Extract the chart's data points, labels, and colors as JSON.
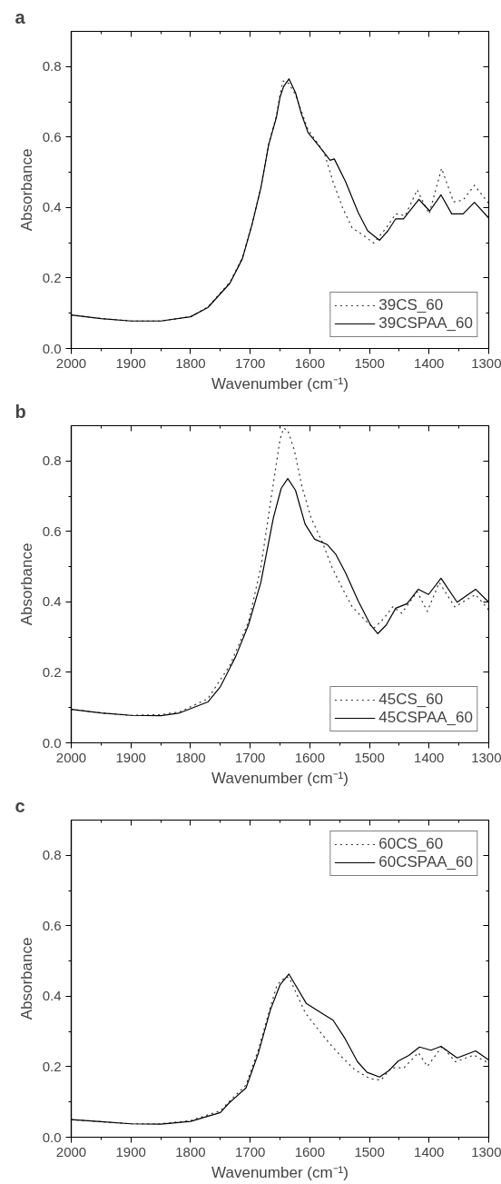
{
  "chart_data": [
    {
      "type": "line",
      "title": "a",
      "xlabel": "Wavenumber (cm⁻¹)",
      "ylabel": "Absorbance",
      "xlim": [
        2000,
        1300
      ],
      "ylim": [
        0,
        0.9
      ],
      "xticks": [
        2000,
        {
          "value": 1950,
          "label": null
        },
        1900,
        {
          "value": 1850,
          "label": null
        },
        1800,
        {
          "value": 1750,
          "label": null
        },
        1700,
        {
          "value": 1650,
          "label": null
        },
        1600,
        {
          "value": 1550,
          "label": null
        },
        1500,
        {
          "value": 1450,
          "label": null
        },
        1400,
        {
          "value": 1350,
          "label": null
        },
        1300
      ],
      "yticks": [
        {
          "value": 0,
          "label": "0.0"
        },
        {
          "value": 0.1,
          "label": null
        },
        0.2,
        {
          "value": 0.3,
          "label": null
        },
        0.4,
        {
          "value": 0.5,
          "label": null
        },
        0.6,
        {
          "value": 0.7,
          "label": null
        },
        0.8
      ],
      "legend": "bottom right",
      "series": [
        {
          "name": "39CS_60",
          "color": "#333333",
          "line_style": "dotted",
          "x": [
            2000,
            1950,
            1900,
            1850,
            1800,
            1771,
            1734,
            1713,
            1697,
            1682,
            1669,
            1656,
            1650,
            1645,
            1635,
            1624,
            1603,
            1576,
            1561,
            1545,
            1529,
            1509,
            1493,
            1472,
            1456,
            1440,
            1420,
            1400,
            1379,
            1359,
            1343,
            1324,
            1300
          ],
          "values": [
            0.095,
            0.085,
            0.078,
            0.078,
            0.09,
            0.118,
            0.188,
            0.258,
            0.352,
            0.458,
            0.58,
            0.66,
            0.72,
            0.759,
            0.752,
            0.72,
            0.621,
            0.556,
            0.473,
            0.399,
            0.342,
            0.32,
            0.299,
            0.342,
            0.382,
            0.377,
            0.45,
            0.382,
            0.511,
            0.416,
            0.421,
            0.463,
            0.412
          ]
        },
        {
          "name": "39CSPAA_60",
          "color": "#000000",
          "line_style": "solid",
          "x": [
            2000,
            1950,
            1900,
            1850,
            1800,
            1771,
            1734,
            1713,
            1697,
            1682,
            1669,
            1656,
            1650,
            1644,
            1635,
            1624,
            1614,
            1603,
            1582,
            1566,
            1559,
            1540,
            1519,
            1503,
            1483,
            1469,
            1456,
            1443,
            1417,
            1399,
            1380,
            1362,
            1343,
            1324,
            1300
          ],
          "values": [
            0.095,
            0.085,
            0.078,
            0.078,
            0.09,
            0.116,
            0.185,
            0.255,
            0.351,
            0.456,
            0.578,
            0.656,
            0.713,
            0.743,
            0.765,
            0.726,
            0.665,
            0.613,
            0.569,
            0.534,
            0.538,
            0.473,
            0.386,
            0.334,
            0.307,
            0.334,
            0.368,
            0.368,
            0.423,
            0.39,
            0.436,
            0.382,
            0.382,
            0.415,
            0.37
          ]
        }
      ]
    },
    {
      "type": "line",
      "title": "b",
      "xlabel": "Wavenumber (cm⁻¹)",
      "ylabel": "Absorbance",
      "xlim": [
        2000,
        1300
      ],
      "ylim": [
        0,
        0.9
      ],
      "xticks": [
        2000,
        {
          "value": 1950,
          "label": null
        },
        1900,
        {
          "value": 1850,
          "label": null
        },
        1800,
        {
          "value": 1750,
          "label": null
        },
        1700,
        {
          "value": 1650,
          "label": null
        },
        1600,
        {
          "value": 1550,
          "label": null
        },
        1500,
        {
          "value": 1450,
          "label": null
        },
        1400,
        {
          "value": 1350,
          "label": null
        },
        1300
      ],
      "yticks": [
        {
          "value": 0,
          "label": "0.0"
        },
        {
          "value": 0.1,
          "label": null
        },
        0.2,
        {
          "value": 0.3,
          "label": null
        },
        0.4,
        {
          "value": 0.5,
          "label": null
        },
        0.6,
        {
          "value": 0.7,
          "label": null
        },
        0.8
      ],
      "legend": "bottom right",
      "series": [
        {
          "name": "45CS_60",
          "color": "#333333",
          "line_style": "dotted",
          "x": [
            2000,
            1950,
            1900,
            1850,
            1818,
            1771,
            1734,
            1703,
            1682,
            1666,
            1650,
            1644,
            1637,
            1626,
            1613,
            1598,
            1579,
            1563,
            1548,
            1529,
            1509,
            1493,
            1477,
            1461,
            1446,
            1420,
            1403,
            1383,
            1357,
            1322,
            1300
          ],
          "values": [
            0.095,
            0.085,
            0.078,
            0.08,
            0.088,
            0.125,
            0.22,
            0.342,
            0.499,
            0.682,
            0.861,
            0.893,
            0.887,
            0.831,
            0.726,
            0.639,
            0.569,
            0.499,
            0.447,
            0.386,
            0.351,
            0.325,
            0.351,
            0.386,
            0.368,
            0.429,
            0.373,
            0.455,
            0.386,
            0.421,
            0.377
          ]
        },
        {
          "name": "45CSPAA_60",
          "color": "#000000",
          "line_style": "solid",
          "x": [
            2000,
            1950,
            1900,
            1850,
            1818,
            1771,
            1750,
            1724,
            1703,
            1682,
            1661,
            1648,
            1637,
            1624,
            1608,
            1592,
            1571,
            1556,
            1540,
            1519,
            1498,
            1486,
            1472,
            1456,
            1437,
            1418,
            1401,
            1380,
            1353,
            1322,
            1300
          ],
          "values": [
            0.095,
            0.085,
            0.078,
            0.077,
            0.085,
            0.116,
            0.159,
            0.246,
            0.334,
            0.456,
            0.639,
            0.722,
            0.75,
            0.717,
            0.621,
            0.578,
            0.563,
            0.534,
            0.482,
            0.403,
            0.334,
            0.31,
            0.334,
            0.382,
            0.395,
            0.436,
            0.421,
            0.467,
            0.399,
            0.436,
            0.399
          ]
        }
      ]
    },
    {
      "type": "line",
      "title": "c",
      "xlabel": "Wavenumber (cm⁻¹)",
      "ylabel": "Absorbance",
      "xlim": [
        2000,
        1300
      ],
      "ylim": [
        0,
        0.9
      ],
      "xticks": [
        2000,
        {
          "value": 1950,
          "label": null
        },
        1900,
        {
          "value": 1850,
          "label": null
        },
        1800,
        {
          "value": 1750,
          "label": null
        },
        1700,
        {
          "value": 1650,
          "label": null
        },
        1600,
        {
          "value": 1550,
          "label": null
        },
        1500,
        {
          "value": 1450,
          "label": null
        },
        1400,
        {
          "value": 1350,
          "label": null
        },
        1300
      ],
      "yticks": [
        {
          "value": 0,
          "label": "0.0"
        },
        {
          "value": 0.1,
          "label": null
        },
        0.2,
        {
          "value": 0.3,
          "label": null
        },
        0.4,
        {
          "value": 0.5,
          "label": null
        },
        0.6,
        {
          "value": 0.7,
          "label": null
        },
        0.8
      ],
      "legend": "top right",
      "series": [
        {
          "name": "60CS_60",
          "color": "#333333",
          "line_style": "dotted",
          "x": [
            2000,
            1950,
            1900,
            1850,
            1800,
            1750,
            1736,
            1707,
            1686,
            1666,
            1655,
            1640,
            1634,
            1608,
            1588,
            1567,
            1546,
            1525,
            1499,
            1481,
            1463,
            1442,
            1418,
            1403,
            1378,
            1356,
            1325,
            1300
          ],
          "values": [
            0.05,
            0.044,
            0.038,
            0.038,
            0.047,
            0.075,
            0.1,
            0.148,
            0.25,
            0.37,
            0.432,
            0.456,
            0.451,
            0.354,
            0.31,
            0.266,
            0.227,
            0.192,
            0.166,
            0.162,
            0.197,
            0.197,
            0.24,
            0.201,
            0.258,
            0.214,
            0.233,
            0.21
          ]
        },
        {
          "name": "60CSPAA_60",
          "color": "#000000",
          "line_style": "solid",
          "x": [
            2000,
            1950,
            1900,
            1850,
            1800,
            1750,
            1736,
            1707,
            1686,
            1666,
            1650,
            1635,
            1621,
            1606,
            1577,
            1561,
            1541,
            1520,
            1504,
            1483,
            1468,
            1452,
            1434,
            1416,
            1397,
            1380,
            1353,
            1322,
            1300
          ],
          "values": [
            0.05,
            0.044,
            0.038,
            0.037,
            0.045,
            0.07,
            0.096,
            0.14,
            0.24,
            0.362,
            0.432,
            0.463,
            0.423,
            0.38,
            0.349,
            0.332,
            0.28,
            0.214,
            0.184,
            0.171,
            0.188,
            0.216,
            0.232,
            0.256,
            0.247,
            0.258,
            0.225,
            0.245,
            0.219
          ]
        }
      ]
    }
  ]
}
